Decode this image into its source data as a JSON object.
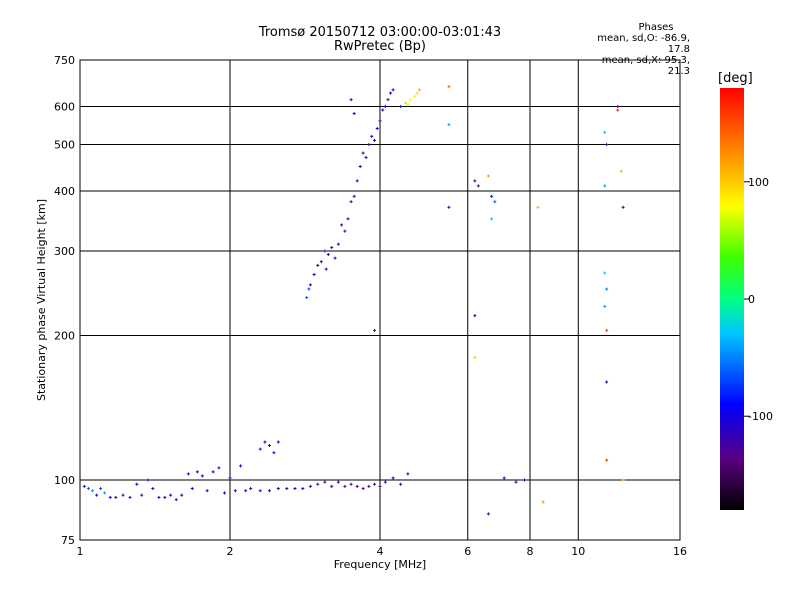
{
  "title": {
    "line1": "Tromsø 20150712 03:00:00-03:01:43",
    "line2": "RwPretec (Bp)"
  },
  "phase_info": {
    "header": "Phases",
    "line1": "mean, sd,O: -86.9, 17.8",
    "line2": "mean, sd,X:  95.3, 21.3"
  },
  "colorbar": {
    "unit": "[deg]",
    "ticks": [
      {
        "value": 100,
        "label": "100"
      },
      {
        "value": 0,
        "label": "0"
      },
      {
        "value": -100,
        "label": "-100"
      }
    ],
    "range": [
      -180,
      180
    ]
  },
  "chart_data": {
    "type": "scatter",
    "xlabel": "Frequency [MHz]",
    "ylabel": "Stationary phase Virtual Height [km]",
    "xscale": "log2",
    "yscale": "log",
    "xlim": [
      1,
      16
    ],
    "ylim": [
      75,
      750
    ],
    "xticks": [
      {
        "value": 1,
        "label": "1"
      },
      {
        "value": 2,
        "label": "2"
      },
      {
        "value": 4,
        "label": "4"
      },
      {
        "value": 6,
        "label": "6"
      },
      {
        "value": 8,
        "label": "8"
      },
      {
        "value": 10,
        "label": "10"
      },
      {
        "value": 16,
        "label": "16"
      }
    ],
    "yticks": [
      {
        "value": 75,
        "label": "75"
      },
      {
        "value": 100,
        "label": "100"
      },
      {
        "value": 200,
        "label": "200"
      },
      {
        "value": 300,
        "label": "300"
      },
      {
        "value": 400,
        "label": "400"
      },
      {
        "value": 500,
        "label": "500"
      },
      {
        "value": 600,
        "label": "600"
      },
      {
        "value": 750,
        "label": "750"
      }
    ],
    "grid": true,
    "points": [
      [
        1.02,
        97,
        -110
      ],
      [
        1.04,
        96,
        -60
      ],
      [
        1.06,
        95,
        -45
      ],
      [
        1.08,
        93,
        -100
      ],
      [
        1.1,
        96,
        -70
      ],
      [
        1.12,
        94,
        -40
      ],
      [
        1.15,
        92,
        -110
      ],
      [
        1.18,
        92,
        -120
      ],
      [
        1.22,
        93,
        -115
      ],
      [
        1.26,
        92,
        -110
      ],
      [
        1.3,
        98,
        -105
      ],
      [
        1.33,
        93,
        -120
      ],
      [
        1.37,
        100,
        -110
      ],
      [
        1.4,
        96,
        -100
      ],
      [
        1.44,
        92,
        -120
      ],
      [
        1.48,
        92,
        -115
      ],
      [
        1.52,
        93,
        -110
      ],
      [
        1.56,
        91,
        -120
      ],
      [
        1.6,
        93,
        -105
      ],
      [
        1.65,
        103,
        -100
      ],
      [
        1.68,
        96,
        -95
      ],
      [
        1.72,
        104,
        -110
      ],
      [
        1.76,
        102,
        -105
      ],
      [
        1.8,
        95,
        -115
      ],
      [
        1.85,
        104,
        -100
      ],
      [
        1.9,
        106,
        -110
      ],
      [
        1.95,
        94,
        -115
      ],
      [
        2.0,
        101,
        -105
      ],
      [
        2.05,
        95,
        -110
      ],
      [
        2.1,
        107,
        -100
      ],
      [
        2.15,
        95,
        -110
      ],
      [
        2.2,
        96,
        -120
      ],
      [
        2.3,
        95,
        -110
      ],
      [
        2.4,
        95,
        -115
      ],
      [
        2.5,
        96,
        -110
      ],
      [
        2.6,
        96,
        -120
      ],
      [
        2.7,
        96,
        -115
      ],
      [
        2.8,
        96,
        -110
      ],
      [
        2.9,
        97,
        -120
      ],
      [
        3.0,
        98,
        -130
      ],
      [
        3.1,
        99,
        -135
      ],
      [
        3.2,
        97,
        -130
      ],
      [
        3.3,
        99,
        -125
      ],
      [
        3.4,
        97,
        -135
      ],
      [
        3.5,
        98,
        -130
      ],
      [
        3.6,
        97,
        -125
      ],
      [
        3.7,
        96,
        -130
      ],
      [
        3.8,
        97,
        -125
      ],
      [
        3.9,
        98,
        -130
      ],
      [
        4.0,
        97,
        -125
      ],
      [
        4.1,
        99,
        -120
      ],
      [
        4.25,
        101,
        -110
      ],
      [
        4.4,
        98,
        -115
      ],
      [
        4.55,
        103,
        -105
      ],
      [
        2.3,
        116,
        -110
      ],
      [
        2.35,
        120,
        -100
      ],
      [
        2.4,
        118,
        -110
      ],
      [
        2.45,
        114,
        -105
      ],
      [
        2.5,
        120,
        -95
      ],
      [
        2.85,
        240,
        -60
      ],
      [
        2.88,
        250,
        -70
      ],
      [
        2.9,
        255,
        -110
      ],
      [
        2.95,
        268,
        -100
      ],
      [
        3.0,
        280,
        -120
      ],
      [
        3.05,
        285,
        -110
      ],
      [
        3.1,
        300,
        -130
      ],
      [
        3.12,
        275,
        -105
      ],
      [
        3.15,
        295,
        -110
      ],
      [
        3.2,
        305,
        -120
      ],
      [
        3.25,
        290,
        -115
      ],
      [
        3.3,
        310,
        -125
      ],
      [
        3.35,
        340,
        -110
      ],
      [
        3.4,
        330,
        -120
      ],
      [
        3.45,
        350,
        -105
      ],
      [
        3.5,
        380,
        -115
      ],
      [
        3.55,
        390,
        -120
      ],
      [
        3.6,
        420,
        -110
      ],
      [
        3.65,
        450,
        -115
      ],
      [
        3.7,
        480,
        -110
      ],
      [
        3.75,
        470,
        -120
      ],
      [
        3.8,
        500,
        -105
      ],
      [
        3.85,
        520,
        -110
      ],
      [
        3.9,
        510,
        -115
      ],
      [
        3.95,
        540,
        -105
      ],
      [
        4.0,
        560,
        -110
      ],
      [
        4.05,
        590,
        -105
      ],
      [
        4.1,
        600,
        -100
      ],
      [
        4.15,
        620,
        -110
      ],
      [
        4.2,
        640,
        -100
      ],
      [
        4.25,
        650,
        -95
      ],
      [
        3.5,
        620,
        -110
      ],
      [
        3.55,
        580,
        -100
      ],
      [
        3.9,
        205,
        -130
      ],
      [
        4.4,
        600,
        -80
      ],
      [
        4.5,
        610,
        60
      ],
      [
        4.55,
        605,
        70
      ],
      [
        4.6,
        620,
        80
      ],
      [
        4.7,
        630,
        90
      ],
      [
        4.75,
        640,
        95
      ],
      [
        4.8,
        650,
        110
      ],
      [
        5.5,
        550,
        -40
      ],
      [
        5.5,
        370,
        -120
      ],
      [
        5.5,
        660,
        140
      ],
      [
        6.2,
        420,
        -120
      ],
      [
        6.3,
        410,
        -130
      ],
      [
        6.2,
        220,
        -120
      ],
      [
        6.6,
        430,
        120
      ],
      [
        6.7,
        390,
        -110
      ],
      [
        6.8,
        380,
        -60
      ],
      [
        6.7,
        350,
        -30
      ],
      [
        6.2,
        180,
        100
      ],
      [
        7.1,
        101,
        -110
      ],
      [
        7.5,
        99,
        -100
      ],
      [
        7.8,
        100,
        -90
      ],
      [
        8.3,
        370,
        110
      ],
      [
        8.5,
        90,
        120
      ],
      [
        6.6,
        85,
        -140
      ],
      [
        11.3,
        530,
        -30
      ],
      [
        11.4,
        500,
        -130
      ],
      [
        11.3,
        410,
        -40
      ],
      [
        11.3,
        270,
        -30
      ],
      [
        11.4,
        250,
        -50
      ],
      [
        11.3,
        230,
        -40
      ],
      [
        11.4,
        205,
        150
      ],
      [
        11.4,
        160,
        -110
      ],
      [
        11.4,
        110,
        160
      ],
      [
        12,
        600,
        -120
      ],
      [
        12,
        590,
        170
      ],
      [
        12.2,
        440,
        110
      ],
      [
        12.3,
        370,
        -120
      ],
      [
        12.3,
        100,
        120
      ]
    ]
  }
}
